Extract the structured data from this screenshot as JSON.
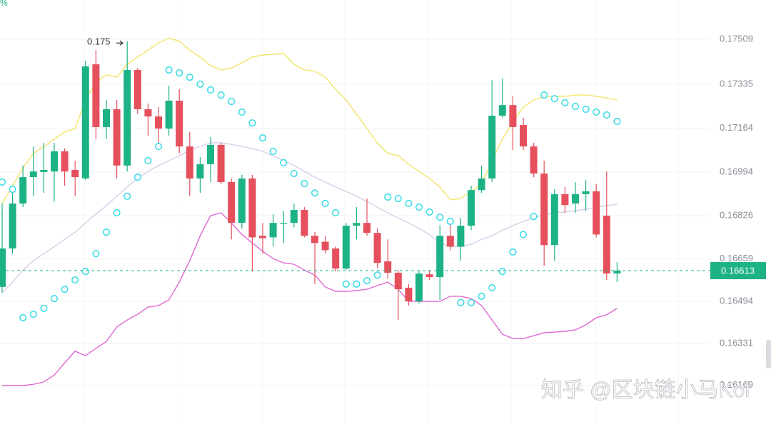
{
  "chart_data": {
    "type": "candlestick",
    "corner_label": "%",
    "watermark": "知乎 @区块链小马Kol",
    "annotation": {
      "value": 0.175,
      "label": "0.175"
    },
    "last_price": 0.16613,
    "ylim": [
      0.16027,
      0.17661
    ],
    "yticks": [
      0.17509,
      0.17335,
      0.17164,
      0.16994,
      0.16826,
      0.16659,
      0.16494,
      0.16331,
      0.16169
    ],
    "grid": true,
    "up_color": "#1db286",
    "down_color": "#e5505c",
    "open": [
      0.1655,
      0.16699,
      0.16873,
      0.16975,
      0.16995,
      0.16997,
      0.17075,
      0.17003,
      0.1697,
      0.17412,
      0.17169,
      0.17238,
      0.1702,
      0.1739,
      0.17238,
      0.1721,
      0.17163,
      0.17271,
      0.17094,
      0.1697,
      0.17025,
      0.171,
      0.16956,
      0.16798,
      0.1697,
      0.16748,
      0.16742,
      0.16795,
      0.16798,
      0.16848,
      0.16748,
      0.16725,
      0.16699,
      0.16621,
      0.16787,
      0.16798,
      0.16759,
      0.16649,
      0.16605,
      0.16547,
      0.16494,
      0.16599,
      0.16588,
      0.16748,
      0.16706,
      0.16787,
      0.16925,
      0.1697,
      0.17213,
      0.17254,
      0.17177,
      0.17094,
      0.16989,
      0.16712,
      0.16909,
      0.16873,
      0.16909,
      0.1692,
      0.16826,
      0.16602
    ],
    "high": [
      0.16873,
      0.16928,
      0.1702,
      0.17094,
      0.17108,
      0.17108,
      0.17086,
      0.17039,
      0.17426,
      0.17467,
      0.17274,
      0.17274,
      0.17501,
      0.17398,
      0.1726,
      0.17246,
      0.17329,
      0.17315,
      0.1715,
      0.17053,
      0.1713,
      0.17108,
      0.1697,
      0.16984,
      0.16984,
      0.16798,
      0.16832,
      0.16845,
      0.16873,
      0.16859,
      0.16762,
      0.16748,
      0.16706,
      0.16798,
      0.16859,
      0.16892,
      0.16776,
      0.16734,
      0.16615,
      0.16561,
      0.1661,
      0.16615,
      0.16789,
      0.16804,
      0.16817,
      0.16942,
      0.1702,
      0.17351,
      0.17357,
      0.17288,
      0.17205,
      0.17108,
      0.17039,
      0.16928,
      0.16937,
      0.16956,
      0.16964,
      0.16948,
      0.16997,
      0.16646
    ],
    "low": [
      0.16527,
      0.16679,
      0.16859,
      0.16901,
      0.16914,
      0.16881,
      0.16942,
      0.16901,
      0.16964,
      0.17122,
      0.17122,
      0.1697,
      0.16997,
      0.17219,
      0.17136,
      0.1708,
      0.17136,
      0.17067,
      0.16901,
      0.16914,
      0.16956,
      0.16948,
      0.16734,
      0.16776,
      0.1661,
      0.16679,
      0.16706,
      0.1672,
      0.16781,
      0.16742,
      0.16561,
      0.16679,
      0.1661,
      0.16615,
      0.16734,
      0.16748,
      0.16624,
      0.16583,
      0.16422,
      0.16478,
      0.16486,
      0.16577,
      0.165,
      0.16692,
      0.16652,
      0.1677,
      0.16914,
      0.16956,
      0.17205,
      0.1708,
      0.1708,
      0.16975,
      0.16632,
      0.16652,
      0.16837,
      0.16837,
      0.16845,
      0.16742,
      0.16577,
      0.16569
    ],
    "close": [
      0.16699,
      0.16873,
      0.16975,
      0.16997,
      0.17003,
      0.17075,
      0.16997,
      0.16975,
      0.17404,
      0.17169,
      0.17238,
      0.1702,
      0.1739,
      0.17238,
      0.1721,
      0.17163,
      0.17271,
      0.17094,
      0.1697,
      0.17025,
      0.171,
      0.16956,
      0.16798,
      0.1697,
      0.16742,
      0.16739,
      0.16798,
      0.16798,
      0.16848,
      0.16748,
      0.1672,
      0.16692,
      0.16621,
      0.16787,
      0.16798,
      0.16759,
      0.16643,
      0.16605,
      0.16541,
      0.16494,
      0.16602,
      0.16588,
      0.16748,
      0.16706,
      0.16787,
      0.16925,
      0.1697,
      0.17213,
      0.17254,
      0.17169,
      0.17094,
      0.16989,
      0.16712,
      0.16909,
      0.16867,
      0.16909,
      0.1692,
      0.16753,
      0.16602,
      0.16613
    ],
    "lines": [
      {
        "color": "#f3e46a",
        "values": [
          0.16873,
          0.16942,
          0.17011,
          0.17067,
          0.17094,
          0.17122,
          0.1715,
          0.17163,
          0.17274,
          0.17343,
          0.17371,
          0.17362,
          0.17412,
          0.1744,
          0.17467,
          0.17495,
          0.17514,
          0.17501,
          0.17467,
          0.1744,
          0.17407,
          0.1739,
          0.17398,
          0.17418,
          0.1744,
          0.17448,
          0.17451,
          0.17454,
          0.17412,
          0.1739,
          0.17385,
          0.17362,
          0.17315,
          0.17274,
          0.17219,
          0.17163,
          0.17108,
          0.17067,
          0.17058,
          0.17025,
          0.16997,
          0.1697,
          0.16937,
          0.16887,
          0.16892,
          0.1692,
          0.16948,
          0.17039,
          0.17122,
          0.17191,
          0.17246,
          0.17274,
          0.17288,
          0.17288,
          0.17288,
          0.17293,
          0.17293,
          0.17288,
          0.17282,
          0.17274
        ]
      },
      {
        "color": "#d6cfe8",
        "values": [
          0.16527,
          0.16569,
          0.16615,
          0.16652,
          0.16679,
          0.16706,
          0.16734,
          0.16762,
          0.16798,
          0.16832,
          0.16865,
          0.16901,
          0.16937,
          0.1697,
          0.16997,
          0.1702,
          0.17039,
          0.17058,
          0.1708,
          0.17094,
          0.17108,
          0.17108,
          0.17102,
          0.17094,
          0.17086,
          0.17075,
          0.17058,
          0.17039,
          0.1702,
          0.16997,
          0.16975,
          0.16956,
          0.16937,
          0.1692,
          0.16901,
          0.16881,
          0.16859,
          0.16837,
          0.16817,
          0.16798,
          0.16776,
          0.16753,
          0.1672,
          0.16706,
          0.16706,
          0.16715,
          0.16734,
          0.16748,
          0.1677,
          0.16787,
          0.16804,
          0.16817,
          0.16832,
          0.16837,
          0.1684,
          0.16845,
          0.16851,
          0.16859,
          0.16865,
          0.1687
        ]
      },
      {
        "color": "#df68d2",
        "values": [
          0.16168,
          0.16168,
          0.16168,
          0.16173,
          0.16182,
          0.16209,
          0.16256,
          0.16301,
          0.16284,
          0.16312,
          0.16339,
          0.16395,
          0.16422,
          0.16444,
          0.16472,
          0.16478,
          0.165,
          0.16569,
          0.16652,
          0.16748,
          0.16826,
          0.16837,
          0.16798,
          0.16753,
          0.1672,
          0.16688,
          0.1666,
          0.16643,
          0.16638,
          0.16615,
          0.16596,
          0.1655,
          0.16533,
          0.16533,
          0.16536,
          0.16541,
          0.16555,
          0.16569,
          0.16541,
          0.16494,
          0.16494,
          0.16494,
          0.16494,
          0.16514,
          0.16514,
          0.16505,
          0.16478,
          0.16422,
          0.16367,
          0.1635,
          0.1635,
          0.16361,
          0.16373,
          0.16375,
          0.16378,
          0.16384,
          0.16403,
          0.16431,
          0.16442,
          0.16467
        ]
      }
    ],
    "sar": {
      "color": "#3fdde6",
      "values": [
        0.16956,
        0.16928,
        0.16431,
        0.16444,
        0.16467,
        0.16505,
        0.16541,
        0.16577,
        0.1661,
        0.16679,
        0.16762,
        0.16837,
        0.16901,
        0.16975,
        0.17039,
        0.17094,
        0.1739,
        0.17379,
        0.17362,
        0.17335,
        0.17313,
        0.17293,
        0.17268,
        0.17227,
        0.17185,
        0.17127,
        0.17075,
        0.17031,
        0.16989,
        0.1695,
        0.16914,
        0.16873,
        0.16837,
        0.16561,
        0.16561,
        0.16574,
        0.16596,
        0.16898,
        0.16892,
        0.16873,
        0.16859,
        0.1684,
        0.1682,
        0.16804,
        0.16489,
        0.16489,
        0.16514,
        0.16547,
        0.1661,
        0.16685,
        0.16753,
        0.16823,
        0.17293,
        0.17279,
        0.17263,
        0.17249,
        0.17238,
        0.17227,
        0.17216,
        0.17191
      ]
    }
  }
}
